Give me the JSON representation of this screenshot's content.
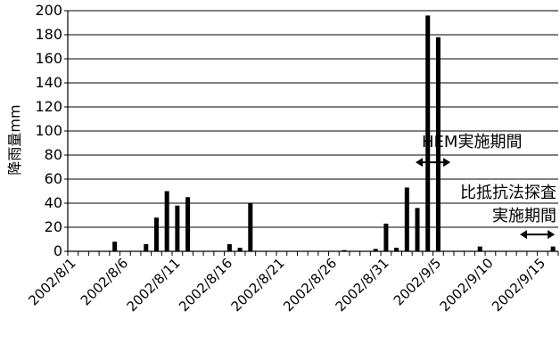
{
  "chart_data": {
    "type": "bar",
    "ylabel": "降雨量mm",
    "ylim": [
      0,
      200
    ],
    "yticks": [
      0,
      20,
      40,
      60,
      80,
      100,
      120,
      140,
      160,
      180,
      200
    ],
    "grid": "horizontal",
    "x_start": "2002/8/1",
    "x_end": "2002/9/15",
    "xtick_labels": [
      "2002/8/1",
      "2002/8/6",
      "2002/8/11",
      "2002/8/16",
      "2002/8/21",
      "2002/8/26",
      "2002/8/31",
      "2002/9/5",
      "2002/9/10",
      "2002/9/15"
    ],
    "categories": [
      "2002/8/1",
      "2002/8/2",
      "2002/8/3",
      "2002/8/4",
      "2002/8/5",
      "2002/8/6",
      "2002/8/7",
      "2002/8/8",
      "2002/8/9",
      "2002/8/10",
      "2002/8/11",
      "2002/8/12",
      "2002/8/13",
      "2002/8/14",
      "2002/8/15",
      "2002/8/16",
      "2002/8/17",
      "2002/8/18",
      "2002/8/19",
      "2002/8/20",
      "2002/8/21",
      "2002/8/22",
      "2002/8/23",
      "2002/8/24",
      "2002/8/25",
      "2002/8/26",
      "2002/8/27",
      "2002/8/28",
      "2002/8/29",
      "2002/8/30",
      "2002/8/31",
      "2002/9/1",
      "2002/9/2",
      "2002/9/3",
      "2002/9/4",
      "2002/9/5",
      "2002/9/6",
      "2002/9/7",
      "2002/9/8",
      "2002/9/9",
      "2002/9/10",
      "2002/9/11",
      "2002/9/12",
      "2002/9/13",
      "2002/9/14",
      "2002/9/15",
      "2002/9/16"
    ],
    "values": [
      0,
      0,
      0,
      0,
      8,
      0,
      0,
      6,
      28,
      50,
      38,
      45,
      0,
      0,
      0,
      6,
      3,
      40,
      0,
      0,
      0,
      0,
      0,
      0,
      0,
      0,
      1,
      0,
      0,
      2,
      23,
      3,
      53,
      36,
      196,
      178,
      0,
      0,
      0,
      4,
      0,
      0,
      0,
      0,
      0,
      0,
      4
    ],
    "bar_color": "#000000",
    "annotations": [
      {
        "line1": "HEM実施期間",
        "line2": "",
        "arrow_from": "2002/9/3",
        "arrow_to": "2002/9/6",
        "arrow_level": 74
      },
      {
        "line1": "比抵抗法探査",
        "line2": "実施期間",
        "arrow_from": "2002/9/13",
        "arrow_to": "2002/9/16",
        "arrow_level": 14
      }
    ]
  }
}
